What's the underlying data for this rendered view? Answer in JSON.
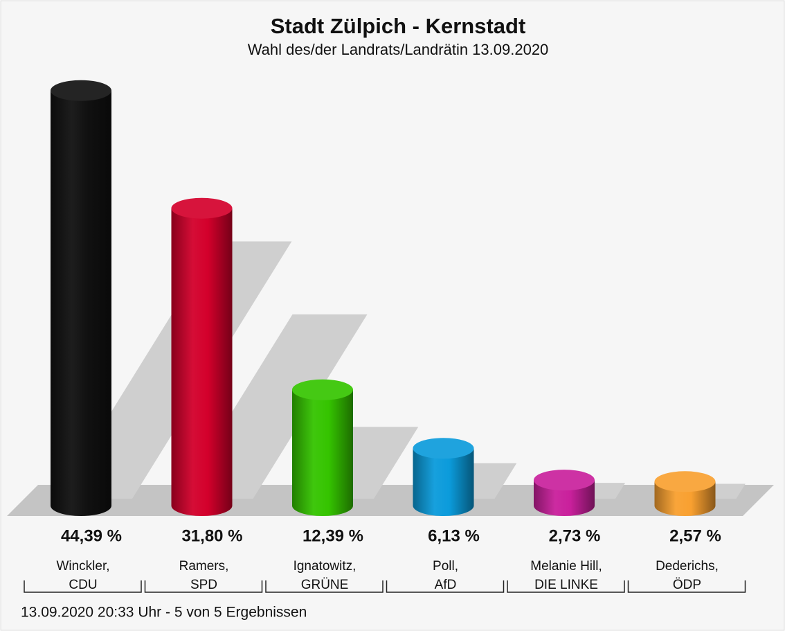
{
  "chart_data": {
    "type": "bar3d",
    "title": "Stadt Zülpich - Kernstadt",
    "subtitle": "Wahl des/der Landrats/Landrätin 13.09.2020",
    "categories": [
      [
        "Winckler,",
        "CDU"
      ],
      [
        "Ramers,",
        "SPD"
      ],
      [
        "Ignatowitz,",
        "GRÜNE"
      ],
      [
        "Poll,",
        "AfD"
      ],
      [
        "Melanie Hill,",
        "DIE LINKE"
      ],
      [
        "Dederichs,",
        "ÖDP"
      ]
    ],
    "values": [
      44.39,
      31.8,
      12.39,
      6.13,
      2.73,
      2.57
    ],
    "value_labels": [
      "44,39 %",
      "31,80 %",
      "12,39 %",
      "6,13 %",
      "2,73 %",
      "2,57 %"
    ],
    "colors": [
      "#111111",
      "#d3002b",
      "#35c400",
      "#0b9bdb",
      "#c9209c",
      "#f9a030"
    ],
    "footer": "13.09.2020 20:33 Uhr - 5 von 5 Ergebnissen"
  }
}
